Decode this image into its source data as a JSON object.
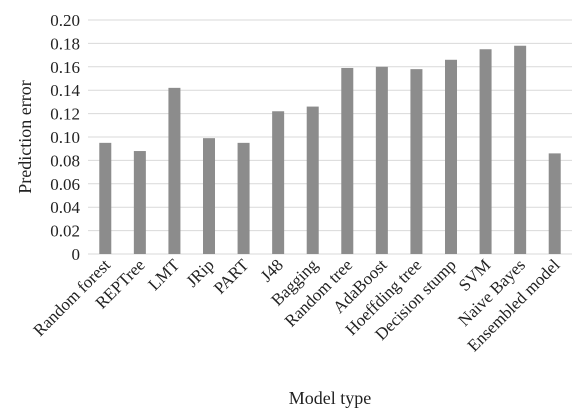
{
  "chart_data": {
    "type": "bar",
    "title": "",
    "xlabel": "Model type",
    "ylabel": "Prediction error",
    "categories": [
      "Random forest",
      "REPTree",
      "LMT",
      "JRip",
      "PART",
      "J48",
      "Bagging",
      "Random tree",
      "AdaBoost",
      "Hoeffding tree",
      "Decision stump",
      "SVM",
      "Naive Bayes",
      "Ensembled model"
    ],
    "values": [
      0.095,
      0.088,
      0.142,
      0.099,
      0.095,
      0.122,
      0.126,
      0.159,
      0.16,
      0.158,
      0.166,
      0.175,
      0.178,
      0.086
    ],
    "ylim": [
      0,
      0.2
    ],
    "yticks": [
      {
        "value": 0.0,
        "label": "0"
      },
      {
        "value": 0.02,
        "label": "0.02"
      },
      {
        "value": 0.04,
        "label": "0.04"
      },
      {
        "value": 0.06,
        "label": "0.06"
      },
      {
        "value": 0.08,
        "label": "0.08"
      },
      {
        "value": 0.1,
        "label": "0.10"
      },
      {
        "value": 0.12,
        "label": "0.12"
      },
      {
        "value": 0.14,
        "label": "0.14"
      },
      {
        "value": 0.16,
        "label": "0.16"
      },
      {
        "value": 0.18,
        "label": "0.18"
      },
      {
        "value": 0.2,
        "label": "0.20"
      }
    ],
    "grid": true,
    "legend": "none",
    "colors": {
      "bar": "#8c8c8c",
      "grid": "#d9d9d9",
      "axis": "#d9d9d9",
      "text": "#222222"
    }
  }
}
